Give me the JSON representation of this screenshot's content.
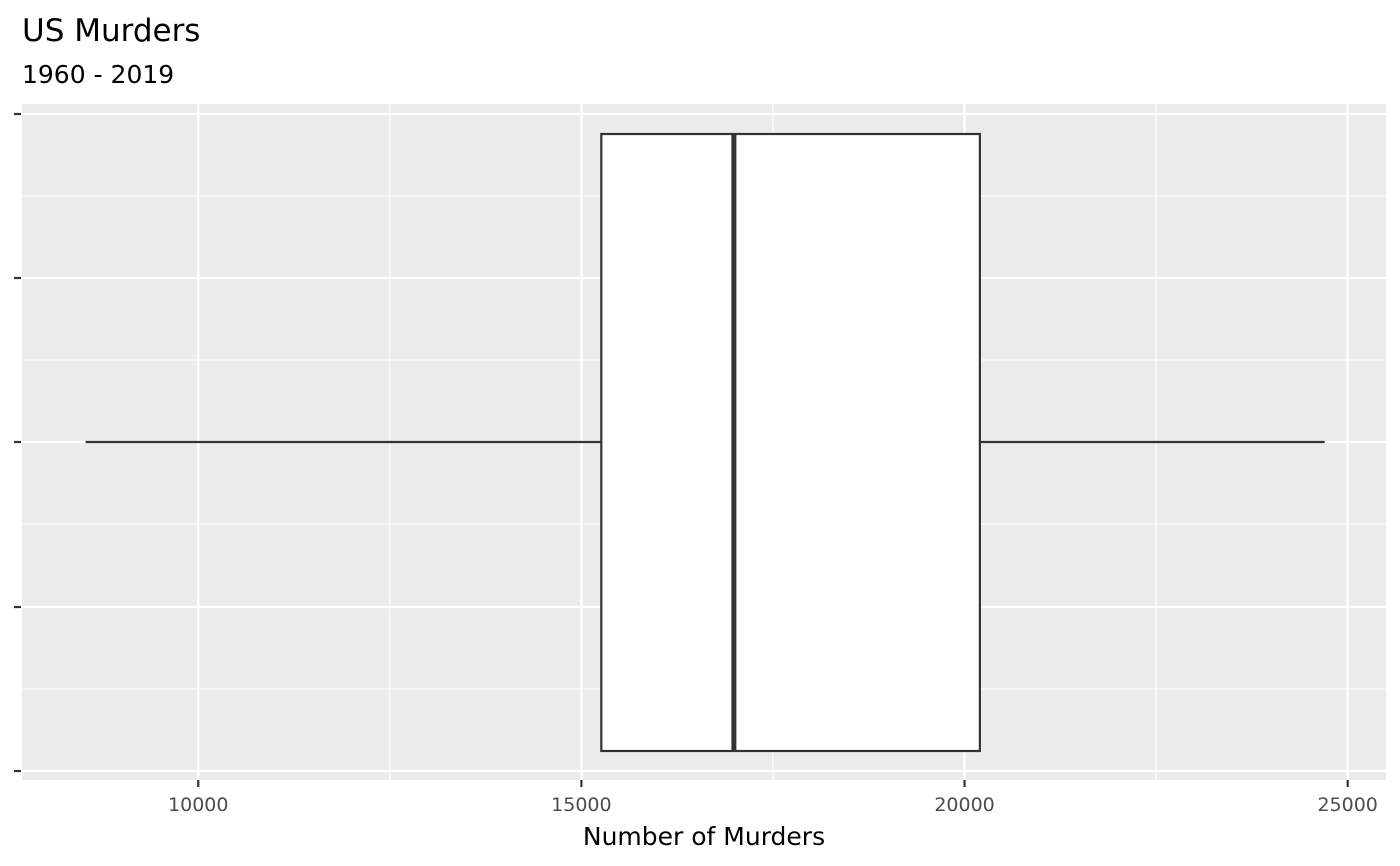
{
  "chart_data": {
    "type": "boxplot",
    "title": "US Murders",
    "subtitle": "1960 - 2019",
    "xlabel": "Number of Murders",
    "ylabel": "",
    "xlim": [
      7700,
      25500
    ],
    "x_ticks": [
      10000,
      15000,
      20000,
      25000
    ],
    "x_tick_labels": [
      "10000",
      "15000",
      "20000",
      "25000"
    ],
    "orientation": "horizontal",
    "grid": true,
    "box": {
      "min": 8530,
      "q1": 15260,
      "median": 16990,
      "q3": 20200,
      "max": 24700
    }
  },
  "colors": {
    "panel_background": "#ebebeb",
    "grid": "#ffffff",
    "box_fill": "#ffffff",
    "box_stroke": "#333333",
    "tick_label": "#4d4d4d",
    "text": "#000000"
  }
}
